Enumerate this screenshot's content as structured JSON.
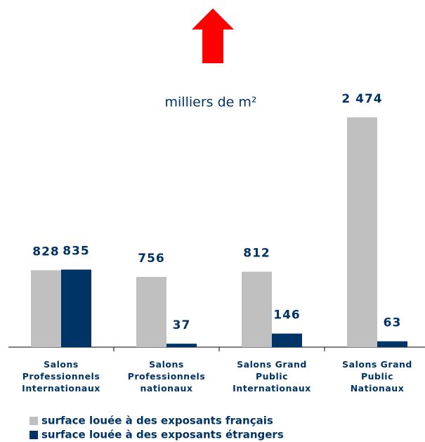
{
  "chart_data": {
    "type": "bar",
    "subtitle": "milliers de m²",
    "categories": [
      "Salons\nProfessionnels\nInternationaux",
      "Salons\nProfessionnels\nnationaux",
      "Salons Grand\nPublic\nInternationaux",
      "Salons Grand\nPublic\nNationaux"
    ],
    "series": [
      {
        "name": "surface louée à des exposants français",
        "color": "#c0c0c0",
        "values": [
          828,
          756,
          812,
          2474
        ],
        "value_labels": [
          "828",
          "756",
          "812",
          "2 474"
        ]
      },
      {
        "name": "surface louée à des exposants étrangers",
        "color": "#003366",
        "values": [
          835,
          37,
          146,
          63
        ]
      }
    ]
  }
}
